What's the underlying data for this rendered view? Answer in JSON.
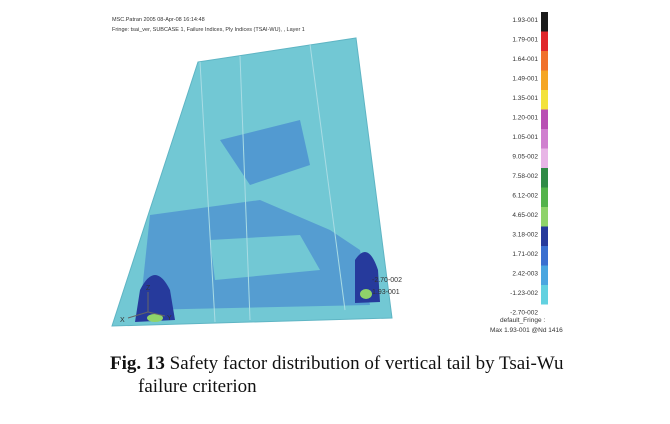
{
  "header": {
    "software": "MSC.Patran 2005 08-Apr-08 16:14:48",
    "fringe": "Fringe: tsai_ver, SUBCASE 1, Failure Indices, Ply Indices (TSAI-WU), , Layer 1"
  },
  "legend": {
    "items": [
      {
        "label": "1.93-001",
        "color": "#1a1a1a"
      },
      {
        "label": "1.79-001",
        "color": "#e0262a"
      },
      {
        "label": "1.64-001",
        "color": "#f0702a"
      },
      {
        "label": "1.49-001",
        "color": "#f5a623"
      },
      {
        "label": "1.35-001",
        "color": "#f3e23a"
      },
      {
        "label": "1.20-001",
        "color": "#b94fb4"
      },
      {
        "label": "1.05-001",
        "color": "#d07fcf"
      },
      {
        "label": "9.05-002",
        "color": "#e8b5e6"
      },
      {
        "label": "7.58-002",
        "color": "#2f8a45"
      },
      {
        "label": "6.12-002",
        "color": "#53b34a"
      },
      {
        "label": "4.65-002",
        "color": "#8fd36a"
      },
      {
        "label": "3.18-002",
        "color": "#263a9c"
      },
      {
        "label": "1.71-002",
        "color": "#3a6fd0"
      },
      {
        "label": "2.42-003",
        "color": "#4aa6e0"
      },
      {
        "label": "-1.23-002",
        "color": "#62d1e0"
      },
      {
        "label": "-2.70-002"
      }
    ],
    "fringe_name": "default_Fringe :",
    "max": "Max 1.93-001 @Nd 1416"
  },
  "plot": {
    "min_marker": "-2.70-002",
    "max_marker": "1.93-001",
    "axes": [
      "Z",
      "Y",
      "X"
    ]
  },
  "caption": {
    "label": "Fig. 13",
    "text": "Safety factor distribution of vertical tail by Tsai-Wu failure criterion"
  }
}
